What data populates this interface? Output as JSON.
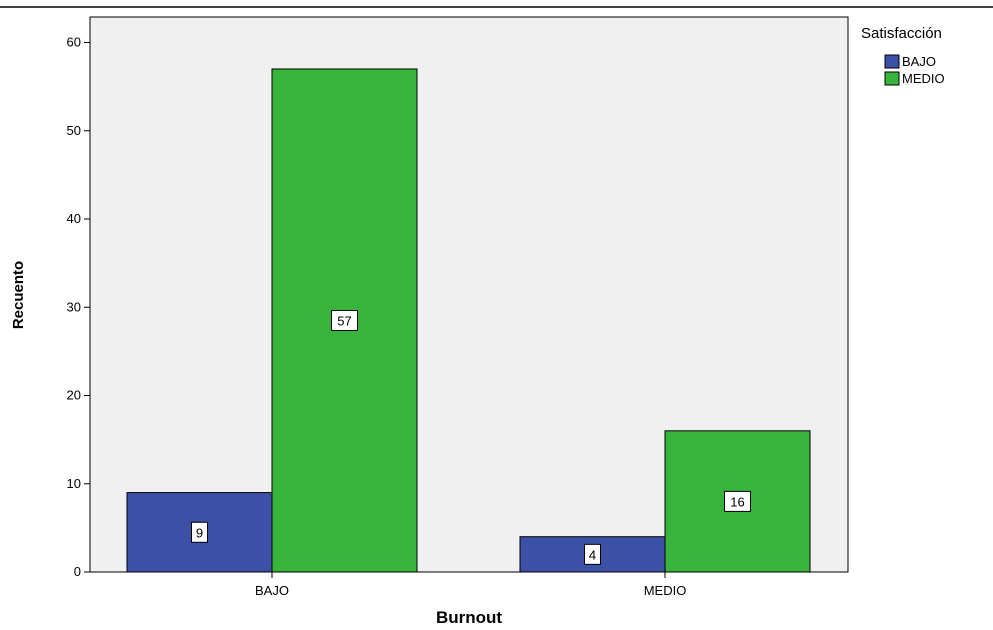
{
  "chart_data": {
    "type": "bar",
    "categories": [
      "BAJO",
      "MEDIO"
    ],
    "series": [
      {
        "name": "BAJO",
        "values": [
          9,
          4
        ]
      },
      {
        "name": "MEDIO",
        "values": [
          57,
          16
        ]
      }
    ],
    "xlabel": "Burnout",
    "ylabel": "Recuento",
    "ylim": [
      0,
      63
    ],
    "yticks": [
      0,
      10,
      20,
      30,
      40,
      50,
      60
    ],
    "legend_title": "Satisfacción",
    "legend_position": "top-right",
    "grid": false,
    "colors": {
      "plot_background": "#f0f0f0",
      "series": [
        "#3c50a6",
        "#38b43c"
      ]
    }
  }
}
